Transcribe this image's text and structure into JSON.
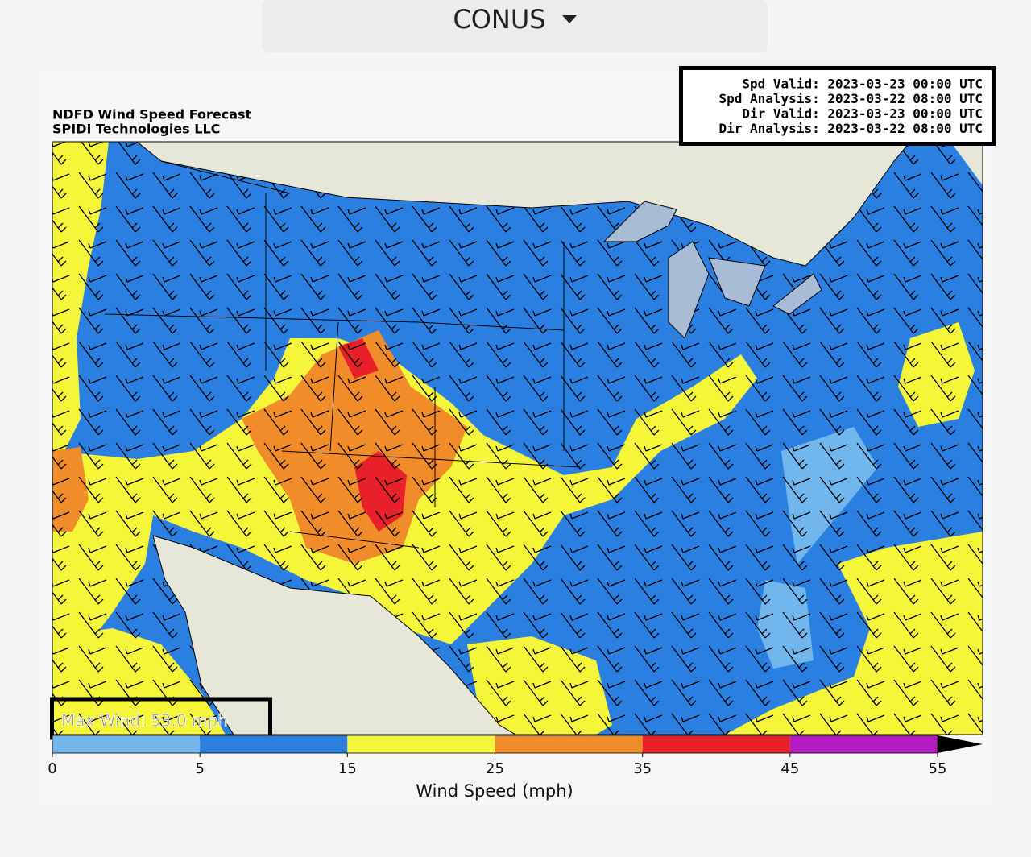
{
  "dropdown": {
    "label": "CONUS"
  },
  "figure": {
    "title_lines": [
      "NDFD Wind Speed Forecast",
      "SPIDI Technologies LLC"
    ],
    "info_box": [
      "Spd Valid: 2023-03-23 00:00 UTC",
      "Spd Analysis: 2023-03-22 08:00 UTC",
      "Dir Valid: 2023-03-23 00:00 UTC",
      "Dir Analysis: 2023-03-22 08:00 UTC"
    ],
    "max_wind": "Max Wind: 53.0 mph",
    "colorbar": {
      "bounds": [
        0,
        5,
        15,
        25,
        35,
        45,
        55
      ],
      "colors": [
        "#72b6ee",
        "#2b7fe0",
        "#f5f53a",
        "#f08c2a",
        "#e8202a",
        "#b51bc2"
      ],
      "extend": "max",
      "extend_color": "#000000",
      "label": "Wind Speed (mph)"
    }
  }
}
